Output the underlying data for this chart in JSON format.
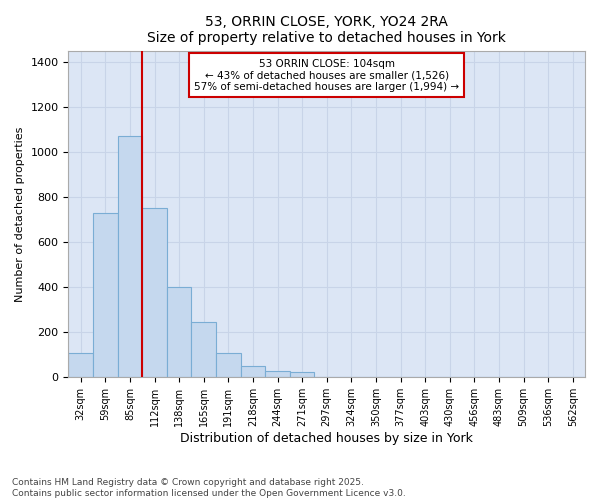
{
  "title": "53, ORRIN CLOSE, YORK, YO24 2RA",
  "subtitle": "Size of property relative to detached houses in York",
  "xlabel": "Distribution of detached houses by size in York",
  "ylabel": "Number of detached properties",
  "categories": [
    "32sqm",
    "59sqm",
    "85sqm",
    "112sqm",
    "138sqm",
    "165sqm",
    "191sqm",
    "218sqm",
    "244sqm",
    "271sqm",
    "297sqm",
    "324sqm",
    "350sqm",
    "377sqm",
    "403sqm",
    "430sqm",
    "456sqm",
    "483sqm",
    "509sqm",
    "536sqm",
    "562sqm"
  ],
  "values": [
    110,
    730,
    1070,
    750,
    400,
    245,
    110,
    50,
    30,
    25,
    0,
    0,
    0,
    0,
    0,
    0,
    0,
    0,
    0,
    0,
    0
  ],
  "bar_color": "#c5d8ee",
  "bar_edge_color": "#7aadd4",
  "grid_color": "#c8d4e8",
  "background_color": "#dce6f5",
  "property_label": "53 ORRIN CLOSE: 104sqm",
  "annotation_line1": "← 43% of detached houses are smaller (1,526)",
  "annotation_line2": "57% of semi-detached houses are larger (1,994) →",
  "annotation_box_color": "#cc0000",
  "ylim": [
    0,
    1450
  ],
  "yticks": [
    0,
    200,
    400,
    600,
    800,
    1000,
    1200,
    1400
  ],
  "footer_line1": "Contains HM Land Registry data © Crown copyright and database right 2025.",
  "footer_line2": "Contains public sector information licensed under the Open Government Licence v3.0."
}
